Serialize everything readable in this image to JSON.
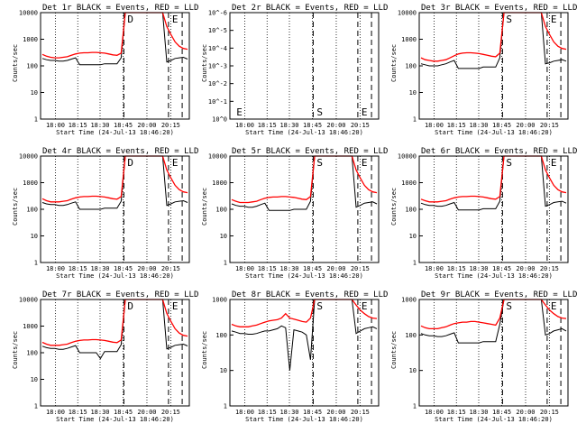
{
  "figure": {
    "xlabel": "Start Time (24-Jul-13 18:46:20)",
    "ylabel": "Counts/sec"
  },
  "chart_data": [
    {
      "type": "line",
      "title": "Det 1r BLACK = Events, RED = LLD",
      "xlabel": "Start Time (24-Jul-13 18:46:20)",
      "ylabel": "Counts/sec",
      "x_ticks": [
        "18:00",
        "18:15",
        "18:30",
        "18:45",
        "20:00",
        "20:15"
      ],
      "y_scale": "log",
      "ylim": [
        1,
        10000
      ],
      "y_ticks": [
        "1",
        "10",
        "100",
        "1000",
        "10000"
      ],
      "markers": [
        "D",
        "E"
      ],
      "series": [
        {
          "color": "#000000",
          "values": [
            190,
            170,
            160,
            160,
            150,
            150,
            160,
            180,
            200,
            110,
            110,
            110,
            110,
            110,
            110,
            120,
            120,
            120,
            120,
            200,
            10000,
            10000,
            10000,
            10000,
            10000,
            10000,
            10000,
            10000,
            10000,
            10000,
            140,
            160,
            190,
            200,
            210,
            180
          ]
        },
        {
          "color": "#ff0000",
          "values": [
            270,
            230,
            210,
            200,
            200,
            210,
            220,
            250,
            280,
            300,
            310,
            310,
            320,
            320,
            310,
            300,
            280,
            260,
            250,
            300,
            10000,
            10000,
            10000,
            10000,
            10000,
            10000,
            10000,
            10000,
            10000,
            10000,
            3000,
            1500,
            800,
            550,
            450,
            420
          ]
        }
      ]
    },
    {
      "type": "line",
      "title": "Det 2r BLACK = Events, RED = LLD",
      "xlabel": "Start Time (24-Jul-13 18:46:20)",
      "ylabel": "Counts/sec",
      "x_ticks": [
        "18:00",
        "18:15",
        "18:30",
        "18:45",
        "20:00",
        "20:15"
      ],
      "y_scale": "log",
      "ylim": [
        1,
        1e-06
      ],
      "y_ticks": [
        "10^0",
        "10^-1",
        "10^-2",
        "10^-3",
        "10^-4",
        "10^-5",
        "10^-6"
      ],
      "markers": [
        "E",
        "S",
        "E"
      ],
      "series": []
    },
    {
      "type": "line",
      "title": "Det 3r BLACK = Events, RED = LLD",
      "xlabel": "Start Time (24-Jul-13 18:46:20)",
      "ylabel": "Counts/sec",
      "x_ticks": [
        "18:00",
        "18:15",
        "18:30",
        "18:45",
        "20:00",
        "20:15"
      ],
      "y_scale": "log",
      "ylim": [
        1,
        10000
      ],
      "y_ticks": [
        "1",
        "10",
        "100",
        "1000",
        "10000"
      ],
      "markers": [
        "S",
        "E"
      ],
      "series": [
        {
          "color": "#000000",
          "values": [
            120,
            110,
            100,
            100,
            100,
            110,
            120,
            140,
            160,
            80,
            80,
            80,
            80,
            80,
            80,
            90,
            90,
            90,
            90,
            200,
            10000,
            10000,
            10000,
            10000,
            10000,
            10000,
            10000,
            10000,
            10000,
            10000,
            120,
            130,
            150,
            160,
            170,
            150
          ]
        },
        {
          "color": "#ff0000",
          "values": [
            200,
            170,
            160,
            150,
            150,
            160,
            170,
            200,
            240,
            280,
            300,
            310,
            310,
            300,
            290,
            270,
            250,
            230,
            220,
            300,
            10000,
            10000,
            10000,
            10000,
            10000,
            10000,
            10000,
            10000,
            10000,
            10000,
            3000,
            1500,
            800,
            550,
            450,
            420
          ]
        }
      ]
    },
    {
      "type": "line",
      "title": "Det 4r BLACK = Events, RED = LLD",
      "xlabel": "Start Time (24-Jul-13 18:46:20)",
      "ylabel": "Counts/sec",
      "x_ticks": [
        "18:00",
        "18:15",
        "18:30",
        "18:45",
        "20:00",
        "20:15"
      ],
      "y_scale": "log",
      "ylim": [
        1,
        10000
      ],
      "y_ticks": [
        "1",
        "10",
        "100",
        "1000",
        "10000"
      ],
      "markers": [
        "D",
        "E"
      ],
      "series": [
        {
          "color": "#000000",
          "values": [
            180,
            160,
            150,
            150,
            140,
            140,
            150,
            170,
            190,
            100,
            100,
            100,
            100,
            100,
            100,
            110,
            110,
            110,
            110,
            200,
            10000,
            10000,
            10000,
            10000,
            10000,
            10000,
            10000,
            10000,
            10000,
            10000,
            140,
            160,
            190,
            200,
            210,
            180
          ]
        },
        {
          "color": "#ff0000",
          "values": [
            250,
            210,
            190,
            190,
            190,
            200,
            210,
            240,
            270,
            290,
            300,
            300,
            310,
            310,
            300,
            290,
            270,
            250,
            240,
            300,
            10000,
            10000,
            10000,
            10000,
            10000,
            10000,
            10000,
            10000,
            10000,
            10000,
            3000,
            1500,
            800,
            550,
            450,
            420
          ]
        }
      ]
    },
    {
      "type": "line",
      "title": "Det 5r BLACK = Events, RED = LLD",
      "xlabel": "Start Time (24-Jul-13 18:46:20)",
      "ylabel": "Counts/sec",
      "x_ticks": [
        "18:00",
        "18:15",
        "18:30",
        "18:45",
        "20:00",
        "20:15"
      ],
      "y_scale": "log",
      "ylim": [
        1,
        10000
      ],
      "y_ticks": [
        "1",
        "10",
        "100",
        "1000",
        "10000"
      ],
      "markers": [
        "S",
        "E"
      ],
      "series": [
        {
          "color": "#000000",
          "values": [
            160,
            140,
            130,
            130,
            120,
            120,
            130,
            150,
            170,
            90,
            90,
            90,
            90,
            90,
            90,
            100,
            100,
            100,
            100,
            200,
            10000,
            10000,
            10000,
            10000,
            10000,
            10000,
            10000,
            10000,
            10000,
            10000,
            120,
            140,
            170,
            180,
            190,
            160
          ]
        },
        {
          "color": "#ff0000",
          "values": [
            230,
            200,
            180,
            180,
            180,
            190,
            200,
            230,
            260,
            280,
            290,
            290,
            300,
            300,
            290,
            280,
            260,
            240,
            230,
            300,
            10000,
            10000,
            10000,
            10000,
            10000,
            10000,
            10000,
            10000,
            10000,
            10000,
            3000,
            1500,
            800,
            550,
            450,
            420
          ]
        }
      ]
    },
    {
      "type": "line",
      "title": "Det 6r BLACK = Events, RED = LLD",
      "xlabel": "Start Time (24-Jul-13 18:46:20)",
      "ylabel": "Counts/sec",
      "x_ticks": [
        "18:00",
        "18:15",
        "18:30",
        "18:45",
        "20:00",
        "20:15"
      ],
      "y_scale": "log",
      "ylim": [
        1,
        10000
      ],
      "y_ticks": [
        "1",
        "10",
        "100",
        "1000",
        "10000"
      ],
      "markers": [
        "S",
        "E"
      ],
      "series": [
        {
          "color": "#000000",
          "values": [
            170,
            150,
            140,
            140,
            130,
            130,
            140,
            160,
            180,
            95,
            95,
            95,
            95,
            95,
            95,
            105,
            105,
            105,
            105,
            200,
            10000,
            10000,
            10000,
            10000,
            10000,
            10000,
            10000,
            10000,
            10000,
            10000,
            130,
            150,
            180,
            190,
            200,
            170
          ]
        },
        {
          "color": "#ff0000",
          "values": [
            240,
            210,
            190,
            190,
            190,
            200,
            210,
            240,
            270,
            290,
            300,
            300,
            310,
            310,
            300,
            290,
            270,
            250,
            240,
            300,
            10000,
            10000,
            10000,
            10000,
            10000,
            10000,
            10000,
            10000,
            10000,
            10000,
            3000,
            1500,
            800,
            550,
            450,
            420
          ]
        }
      ]
    },
    {
      "type": "line",
      "title": "Det 7r BLACK = Events, RED = LLD",
      "xlabel": "Start Time (24-Jul-13 18:46:20)",
      "ylabel": "Counts/sec",
      "x_ticks": [
        "18:00",
        "18:15",
        "18:30",
        "18:45",
        "20:00",
        "20:15"
      ],
      "y_scale": "log",
      "ylim": [
        1,
        10000
      ],
      "y_ticks": [
        "1",
        "10",
        "100",
        "1000",
        "10000"
      ],
      "markers": [
        "D",
        "E"
      ],
      "series": [
        {
          "color": "#000000",
          "values": [
            175,
            155,
            145,
            145,
            135,
            135,
            145,
            165,
            185,
            100,
            100,
            100,
            100,
            100,
            60,
            110,
            110,
            110,
            110,
            200,
            10000,
            10000,
            10000,
            10000,
            10000,
            10000,
            10000,
            10000,
            10000,
            10000,
            140,
            160,
            190,
            200,
            210,
            180
          ]
        },
        {
          "color": "#ff0000",
          "values": [
            245,
            210,
            190,
            190,
            190,
            200,
            210,
            240,
            270,
            290,
            300,
            300,
            310,
            310,
            300,
            290,
            270,
            250,
            240,
            300,
            10000,
            10000,
            10000,
            10000,
            10000,
            10000,
            10000,
            10000,
            10000,
            10000,
            3000,
            1500,
            800,
            550,
            450,
            420
          ]
        }
      ]
    },
    {
      "type": "line",
      "title": "Det 8r BLACK = Events, RED = LLD",
      "xlabel": "Start Time (24-Jul-13 18:46:20)",
      "ylabel": "Counts/sec",
      "x_ticks": [
        "18:00",
        "18:15",
        "18:30",
        "18:45",
        "20:00",
        "20:15"
      ],
      "y_scale": "log",
      "ylim": [
        1,
        1000
      ],
      "y_ticks": [
        "1",
        "10",
        "100",
        "1000"
      ],
      "markers": [
        "S",
        "E"
      ],
      "series": [
        {
          "color": "#000000",
          "values": [
            130,
            120,
            110,
            110,
            105,
            105,
            110,
            120,
            130,
            130,
            140,
            150,
            180,
            160,
            10,
            140,
            130,
            120,
            100,
            20,
            1000,
            1000,
            1000,
            1000,
            1000,
            1000,
            1000,
            1000,
            1000,
            1000,
            110,
            130,
            150,
            160,
            170,
            150
          ]
        },
        {
          "color": "#ff0000",
          "values": [
            200,
            180,
            170,
            170,
            170,
            180,
            190,
            210,
            230,
            250,
            260,
            270,
            300,
            400,
            300,
            280,
            260,
            240,
            230,
            300,
            1000,
            1000,
            1000,
            1000,
            1000,
            1000,
            1000,
            1000,
            1000,
            1000,
            700,
            500,
            400,
            330,
            300,
            290
          ]
        }
      ]
    },
    {
      "type": "line",
      "title": "Det 9r BLACK = Events, RED = LLD",
      "xlabel": "Start Time (24-Jul-13 18:46:20)",
      "ylabel": "Counts/sec",
      "x_ticks": [
        "18:00",
        "18:15",
        "18:30",
        "18:45",
        "20:00",
        "20:15"
      ],
      "y_scale": "log",
      "ylim": [
        1,
        1000
      ],
      "y_ticks": [
        "1",
        "10",
        "100",
        "1000"
      ],
      "markers": [
        "S",
        "E"
      ],
      "series": [
        {
          "color": "#000000",
          "values": [
            110,
            100,
            95,
            95,
            90,
            90,
            95,
            105,
            115,
            60,
            60,
            60,
            60,
            60,
            60,
            65,
            65,
            65,
            65,
            200,
            1000,
            1000,
            1000,
            1000,
            1000,
            1000,
            1000,
            1000,
            1000,
            1000,
            100,
            110,
            130,
            140,
            150,
            130
          ]
        },
        {
          "color": "#ff0000",
          "values": [
            180,
            160,
            150,
            150,
            150,
            160,
            170,
            190,
            210,
            220,
            230,
            230,
            240,
            240,
            230,
            220,
            210,
            200,
            190,
            300,
            1000,
            1000,
            1000,
            1000,
            1000,
            1000,
            1000,
            1000,
            1000,
            1000,
            700,
            500,
            400,
            330,
            300,
            290
          ]
        }
      ]
    }
  ]
}
